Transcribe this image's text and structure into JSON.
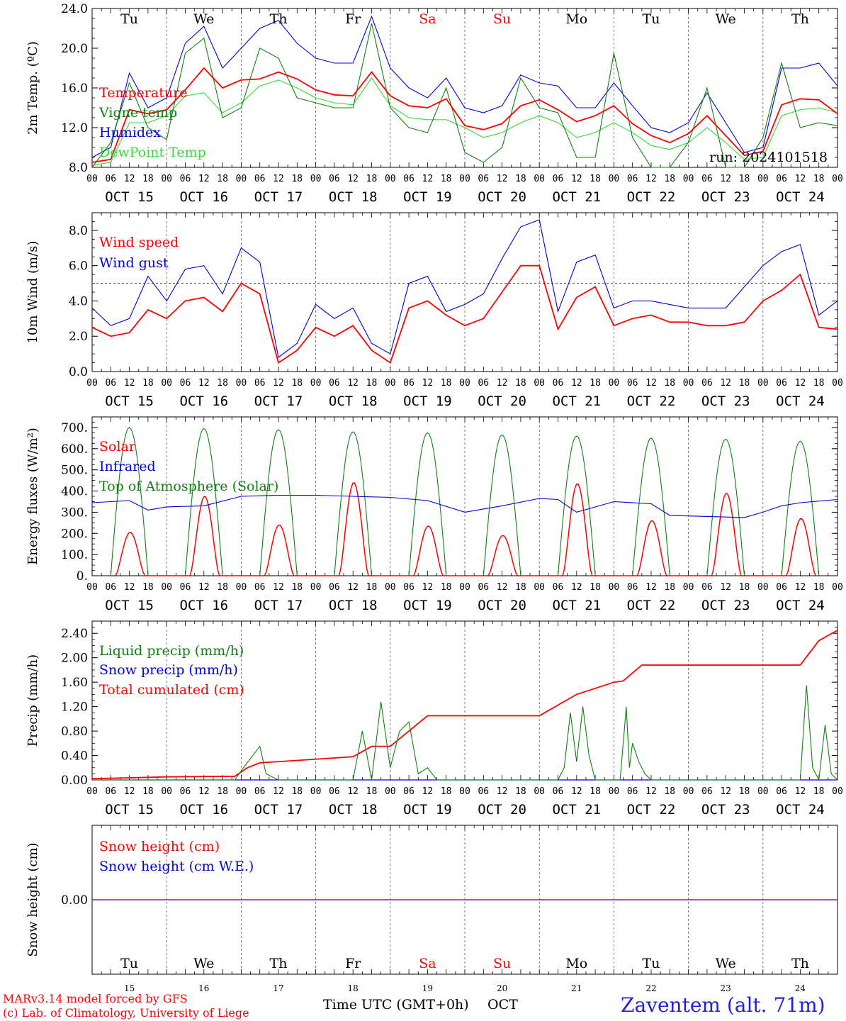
{
  "run_label": "run: 2024101518",
  "station_label": "Zaventem (alt. 71m)",
  "credits": [
    "MARv3.14 model forced by GFS",
    "(c) Lab. of Climatology, University of Liege"
  ],
  "time_axis_label": "Time UTC (GMT+0h)",
  "month_label": "OCT",
  "hour_labels": [
    "00",
    "06",
    "12",
    "18"
  ],
  "days": [
    {
      "abbr": "Tu",
      "num": "15",
      "date": "OCT 15",
      "weekend": false
    },
    {
      "abbr": "We",
      "num": "16",
      "date": "OCT 16",
      "weekend": false
    },
    {
      "abbr": "Th",
      "num": "17",
      "date": "OCT 17",
      "weekend": false
    },
    {
      "abbr": "Fr",
      "num": "18",
      "date": "OCT 18",
      "weekend": false
    },
    {
      "abbr": "Sa",
      "num": "19",
      "date": "OCT 19",
      "weekend": true
    },
    {
      "abbr": "Su",
      "num": "20",
      "date": "OCT 20",
      "weekend": true
    },
    {
      "abbr": "Mo",
      "num": "21",
      "date": "OCT 21",
      "weekend": false
    },
    {
      "abbr": "Tu",
      "num": "22",
      "date": "OCT 22",
      "weekend": false
    },
    {
      "abbr": "We",
      "num": "23",
      "date": "OCT 23",
      "weekend": false
    },
    {
      "abbr": "Th",
      "num": "24",
      "date": "OCT 24",
      "weekend": false
    }
  ],
  "colors": {
    "red": "#ff0000",
    "green": "#108010",
    "blue": "#0000dd",
    "lightgreen": "#33dd33",
    "purple": "#8020a0",
    "weekend": "#ff0000",
    "station": "#2222dd"
  },
  "chart_data": [
    {
      "type": "line",
      "id": "temp",
      "ylabel": "2m Temp. (ºC)",
      "ylim": [
        8,
        24
      ],
      "yticks": [
        "8.0",
        "12.0",
        "16.0",
        "20.0",
        "24.0"
      ],
      "yticks_values": [
        8,
        12,
        16,
        20,
        24
      ],
      "legend": [
        "Temperature",
        "Vigne temp",
        "Humidex",
        "DewPoint Temp"
      ],
      "x_hours": [
        0,
        6,
        12,
        18,
        24,
        30,
        36,
        42,
        48,
        54,
        60,
        66,
        72,
        78,
        84,
        90,
        96,
        102,
        108,
        114,
        120,
        126,
        132,
        138,
        144,
        150,
        156,
        162,
        168,
        174,
        180,
        186,
        192,
        198,
        204,
        210,
        216,
        222,
        228,
        234,
        240
      ],
      "series": [
        {
          "name": "Temperature",
          "color": "red",
          "values": [
            8.5,
            8.8,
            13.8,
            13.4,
            13.8,
            15.8,
            18.0,
            16.0,
            16.8,
            16.9,
            17.6,
            16.9,
            15.8,
            15.3,
            15.2,
            17.6,
            15.2,
            14.2,
            14.0,
            14.9,
            12.2,
            11.8,
            12.4,
            14.2,
            14.8,
            13.8,
            12.6,
            13.2,
            14.2,
            12.4,
            11.2,
            10.5,
            11.4,
            13.2,
            11.2,
            9.2,
            9.6,
            14.3,
            14.9,
            14.8,
            13.4
          ]
        },
        {
          "name": "Vigne temp",
          "color": "green",
          "values": [
            8.0,
            10.5,
            16.5,
            12.0,
            10.8,
            19.5,
            21.0,
            13.0,
            14.0,
            20.0,
            19.0,
            15.0,
            14.5,
            14.0,
            14.0,
            22.5,
            14.0,
            12.0,
            11.5,
            16.0,
            9.5,
            8.5,
            10.0,
            17.0,
            14.0,
            13.5,
            9.0,
            9.0,
            19.5,
            11.0,
            8.0,
            6.0,
            10.5,
            16.0,
            7.0,
            6.0,
            11.0,
            18.5,
            12.0,
            12.5,
            12.2
          ]
        },
        {
          "name": "Humidex",
          "color": "blue",
          "values": [
            9.0,
            10.0,
            17.5,
            14.0,
            15.0,
            20.5,
            22.2,
            18.0,
            20.0,
            22.0,
            22.8,
            20.5,
            19.0,
            18.5,
            18.5,
            23.2,
            18.0,
            16.0,
            15.0,
            17.0,
            14.0,
            13.5,
            14.2,
            17.3,
            16.5,
            16.2,
            14.0,
            14.0,
            16.5,
            14.2,
            12.0,
            11.5,
            12.5,
            15.5,
            12.5,
            9.5,
            10.0,
            18.0,
            18.0,
            18.5,
            16.2
          ]
        },
        {
          "name": "DewPoint Temp",
          "color": "lightgreen",
          "values": [
            8.2,
            8.5,
            12.5,
            12.5,
            13.2,
            15.2,
            15.5,
            13.5,
            14.5,
            16.2,
            16.8,
            16.0,
            15.0,
            14.5,
            14.3,
            17.0,
            14.2,
            13.0,
            12.8,
            12.8,
            12.0,
            11.0,
            11.5,
            12.5,
            13.2,
            12.5,
            11.0,
            11.5,
            12.5,
            11.5,
            10.2,
            9.8,
            10.5,
            12.0,
            10.5,
            8.8,
            9.0,
            13.2,
            13.8,
            14.0,
            13.5
          ]
        }
      ]
    },
    {
      "type": "line",
      "id": "wind",
      "ylabel": "10m Wind (m/s)",
      "ylim": [
        0,
        9
      ],
      "yticks": [
        "0.0",
        "2.0",
        "4.0",
        "6.0",
        "8.0"
      ],
      "yticks_values": [
        0,
        2,
        4,
        6,
        8
      ],
      "hline": 5,
      "legend": [
        "Wind speed",
        "Wind gust"
      ],
      "x_hours": [
        0,
        6,
        12,
        18,
        24,
        30,
        36,
        42,
        48,
        54,
        60,
        66,
        72,
        78,
        84,
        90,
        96,
        102,
        108,
        114,
        120,
        126,
        132,
        138,
        144,
        150,
        156,
        162,
        168,
        174,
        180,
        186,
        192,
        198,
        204,
        210,
        216,
        222,
        228,
        234,
        240
      ],
      "series": [
        {
          "name": "Wind speed",
          "color": "red",
          "values": [
            2.5,
            2.0,
            2.2,
            3.5,
            3.0,
            4.0,
            4.2,
            3.4,
            5.0,
            4.4,
            0.5,
            1.2,
            2.5,
            2.0,
            2.6,
            1.2,
            0.5,
            3.6,
            4.0,
            3.2,
            2.6,
            3.0,
            4.5,
            6.0,
            6.0,
            2.4,
            4.2,
            4.8,
            2.6,
            3.0,
            3.2,
            2.8,
            2.8,
            2.6,
            2.6,
            2.8,
            4.0,
            4.6,
            5.5,
            2.5,
            2.4
          ]
        },
        {
          "name": "Wind gust",
          "color": "blue",
          "values": [
            3.6,
            2.6,
            3.0,
            5.4,
            4.0,
            5.8,
            6.0,
            4.4,
            7.0,
            6.2,
            0.8,
            1.6,
            3.8,
            3.0,
            3.6,
            1.6,
            1.0,
            5.0,
            5.4,
            3.4,
            3.8,
            4.4,
            6.4,
            8.2,
            8.6,
            3.4,
            6.2,
            6.6,
            3.6,
            4.0,
            4.0,
            3.8,
            3.6,
            3.6,
            3.6,
            4.8,
            6.0,
            6.8,
            7.2,
            3.2,
            4.0
          ]
        }
      ]
    },
    {
      "type": "line",
      "id": "flux",
      "ylabel": "Energy fluxes (W/m²)",
      "ylim": [
        0,
        750
      ],
      "yticks": [
        "0.",
        "100.",
        "200.",
        "300.",
        "400.",
        "500.",
        "600.",
        "700."
      ],
      "yticks_values": [
        0,
        100,
        200,
        300,
        400,
        500,
        600,
        700
      ],
      "legend": [
        "Solar",
        "Infrared",
        "Top of Atmosphere (Solar)"
      ],
      "toa_peaks": [
        700,
        695,
        690,
        680,
        675,
        665,
        660,
        650,
        645,
        635
      ],
      "solar_peaks": [
        205,
        375,
        240,
        440,
        235,
        190,
        435,
        260,
        390,
        270
      ],
      "series": [
        {
          "name": "Infrared",
          "color": "blue",
          "x_hours": [
            0,
            12,
            18,
            24,
            36,
            48,
            60,
            72,
            84,
            96,
            108,
            120,
            132,
            144,
            150,
            156,
            168,
            180,
            186,
            198,
            210,
            216,
            222,
            228,
            240
          ],
          "values": [
            345,
            355,
            310,
            325,
            330,
            375,
            380,
            380,
            375,
            370,
            355,
            300,
            330,
            365,
            360,
            300,
            350,
            340,
            285,
            280,
            275,
            300,
            330,
            345,
            360
          ]
        }
      ]
    },
    {
      "type": "line",
      "id": "precip",
      "ylabel": "Precip (mm/h)",
      "ylim": [
        0,
        2.6
      ],
      "yticks": [
        "0.00",
        "0.40",
        "0.80",
        "1.20",
        "1.60",
        "2.00",
        "2.40"
      ],
      "yticks_values": [
        0,
        0.4,
        0.8,
        1.2,
        1.6,
        2.0,
        2.4
      ],
      "legend": [
        "Liquid precip (mm/h)",
        "Snow precip (mm/h)",
        "Total cumulated (cm)"
      ],
      "series": [
        {
          "name": "Total cumulated (cm)",
          "color": "red",
          "x_hours": [
            0,
            24,
            46,
            50,
            54,
            84,
            90,
            96,
            102,
            108,
            144,
            156,
            168,
            171,
            174,
            177,
            180,
            228,
            234,
            240
          ],
          "values": [
            0.02,
            0.05,
            0.06,
            0.2,
            0.28,
            0.38,
            0.55,
            0.55,
            0.8,
            1.05,
            1.05,
            1.4,
            1.6,
            1.62,
            1.75,
            1.88,
            1.88,
            1.88,
            2.28,
            2.45
          ]
        },
        {
          "name": "Liquid precip (mm/h)",
          "color": "green",
          "x_hours": [
            0,
            46,
            48,
            54,
            56,
            60,
            84,
            87,
            90,
            93,
            96,
            99,
            102,
            105,
            108,
            111,
            114,
            150,
            152,
            154,
            156,
            158,
            160,
            162,
            162.5,
            164,
            170,
            172,
            173,
            174,
            176,
            178,
            180,
            220,
            226,
            228,
            230,
            232,
            234,
            236,
            238,
            240
          ],
          "values": [
            0,
            0,
            0.15,
            0.55,
            0.1,
            0,
            0,
            0.8,
            0,
            1.28,
            0.2,
            0.8,
            0.95,
            0.1,
            0.2,
            0,
            0,
            0,
            0.2,
            1.1,
            0.3,
            1.2,
            0.4,
            0,
            0,
            0,
            0,
            1.2,
            0.2,
            0.6,
            0.3,
            0.1,
            0,
            0,
            0,
            0,
            1.55,
            0.2,
            0,
            0.9,
            0.1,
            0
          ]
        }
      ]
    },
    {
      "type": "line",
      "id": "snow",
      "ylabel": "Snow height (cm)",
      "ytick": "0.00",
      "legend": [
        "Snow height (cm)",
        "Snow height (cm W.E.)"
      ],
      "series": [
        {
          "name": "Snow height (cm)",
          "color": "red",
          "values": [
            0
          ]
        },
        {
          "name": "Snow height (cm W.E.)",
          "color": "blue",
          "values": [
            0
          ]
        }
      ]
    }
  ]
}
